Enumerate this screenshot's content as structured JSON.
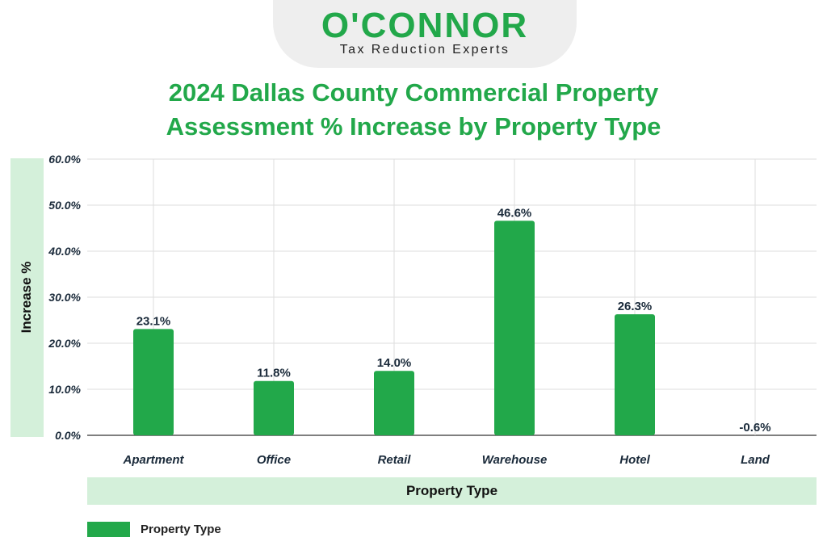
{
  "brand": {
    "name": "O'CONNOR",
    "tagline": "Tax Reduction Experts",
    "color": "#22a84a"
  },
  "chart_data": {
    "type": "bar",
    "title_line1": "2024 Dallas County Commercial Property",
    "title_line2": "Assessment % Increase by Property Type",
    "xlabel": "Property Type",
    "ylabel": "Increase %",
    "categories": [
      "Apartment",
      "Office",
      "Retail",
      "Warehouse",
      "Hotel",
      "Land"
    ],
    "series": [
      {
        "name": "Property Type",
        "values": [
          23.1,
          11.8,
          14.0,
          46.6,
          26.3,
          -0.6
        ],
        "data_labels": [
          "23.1%",
          "11.8%",
          "14.0%",
          "46.6%",
          "26.3%",
          "-0.6%"
        ],
        "color": "#22a84a"
      }
    ],
    "ylim": [
      0,
      60
    ],
    "yticks": [
      "0.0%",
      "10.0%",
      "20.0%",
      "30.0%",
      "40.0%",
      "50.0%",
      "60.0%"
    ],
    "grid": true,
    "legend_position": "bottom-left"
  }
}
